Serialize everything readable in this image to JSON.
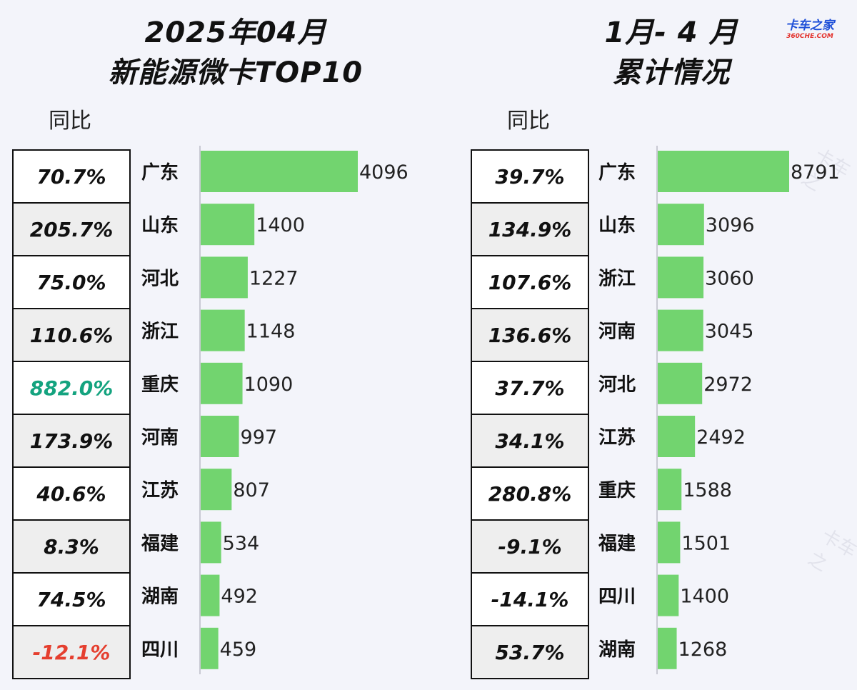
{
  "colors": {
    "bar": "#72d46f",
    "positive_highlight": "#14a37f",
    "negative": "#e53f2f",
    "text": "#111111"
  },
  "logo": {
    "name": "卡车之家",
    "url": "360CHE.COM"
  },
  "watermark": "卡车之",
  "left": {
    "title_line1": "2025年04月",
    "title_line2": "新能源微卡TOP10",
    "yoy_header": "同比",
    "yoy": [
      {
        "value": "70.7%",
        "style": "normal"
      },
      {
        "value": "205.7%",
        "style": "normal"
      },
      {
        "value": "75.0%",
        "style": "normal"
      },
      {
        "value": "110.6%",
        "style": "normal"
      },
      {
        "value": "882.0%",
        "style": "highlight"
      },
      {
        "value": "173.9%",
        "style": "normal"
      },
      {
        "value": "40.6%",
        "style": "normal"
      },
      {
        "value": "8.3%",
        "style": "normal"
      },
      {
        "value": "74.5%",
        "style": "normal"
      },
      {
        "value": "-12.1%",
        "style": "negative"
      }
    ]
  },
  "right": {
    "title_line1": "1月- 4 月",
    "title_line2": "累计情况",
    "yoy_header": "同比",
    "yoy": [
      {
        "value": "39.7%",
        "style": "normal"
      },
      {
        "value": "134.9%",
        "style": "normal"
      },
      {
        "value": "107.6%",
        "style": "normal"
      },
      {
        "value": "136.6%",
        "style": "normal"
      },
      {
        "value": "37.7%",
        "style": "normal"
      },
      {
        "value": "34.1%",
        "style": "normal"
      },
      {
        "value": "280.8%",
        "style": "normal"
      },
      {
        "value": "-9.1%",
        "style": "normal"
      },
      {
        "value": "-14.1%",
        "style": "normal"
      },
      {
        "value": "53.7%",
        "style": "normal"
      }
    ]
  },
  "chart_data": [
    {
      "type": "bar",
      "orientation": "horizontal",
      "title": "2025年04月 新能源微卡TOP10",
      "categories": [
        "广东",
        "山东",
        "河北",
        "浙江",
        "重庆",
        "河南",
        "江苏",
        "福建",
        "湖南",
        "四川"
      ],
      "values": [
        4096,
        1400,
        1227,
        1148,
        1090,
        997,
        807,
        534,
        492,
        459
      ],
      "xlim": [
        0,
        4096
      ],
      "grid": false
    },
    {
      "type": "bar",
      "orientation": "horizontal",
      "title": "1月- 4 月 累计情况",
      "categories": [
        "广东",
        "山东",
        "浙江",
        "河南",
        "河北",
        "江苏",
        "重庆",
        "福建",
        "四川",
        "湖南"
      ],
      "values": [
        8791,
        3096,
        3060,
        3045,
        2972,
        2492,
        1588,
        1501,
        1400,
        1268
      ],
      "xlim": [
        0,
        8791
      ],
      "grid": false
    }
  ]
}
